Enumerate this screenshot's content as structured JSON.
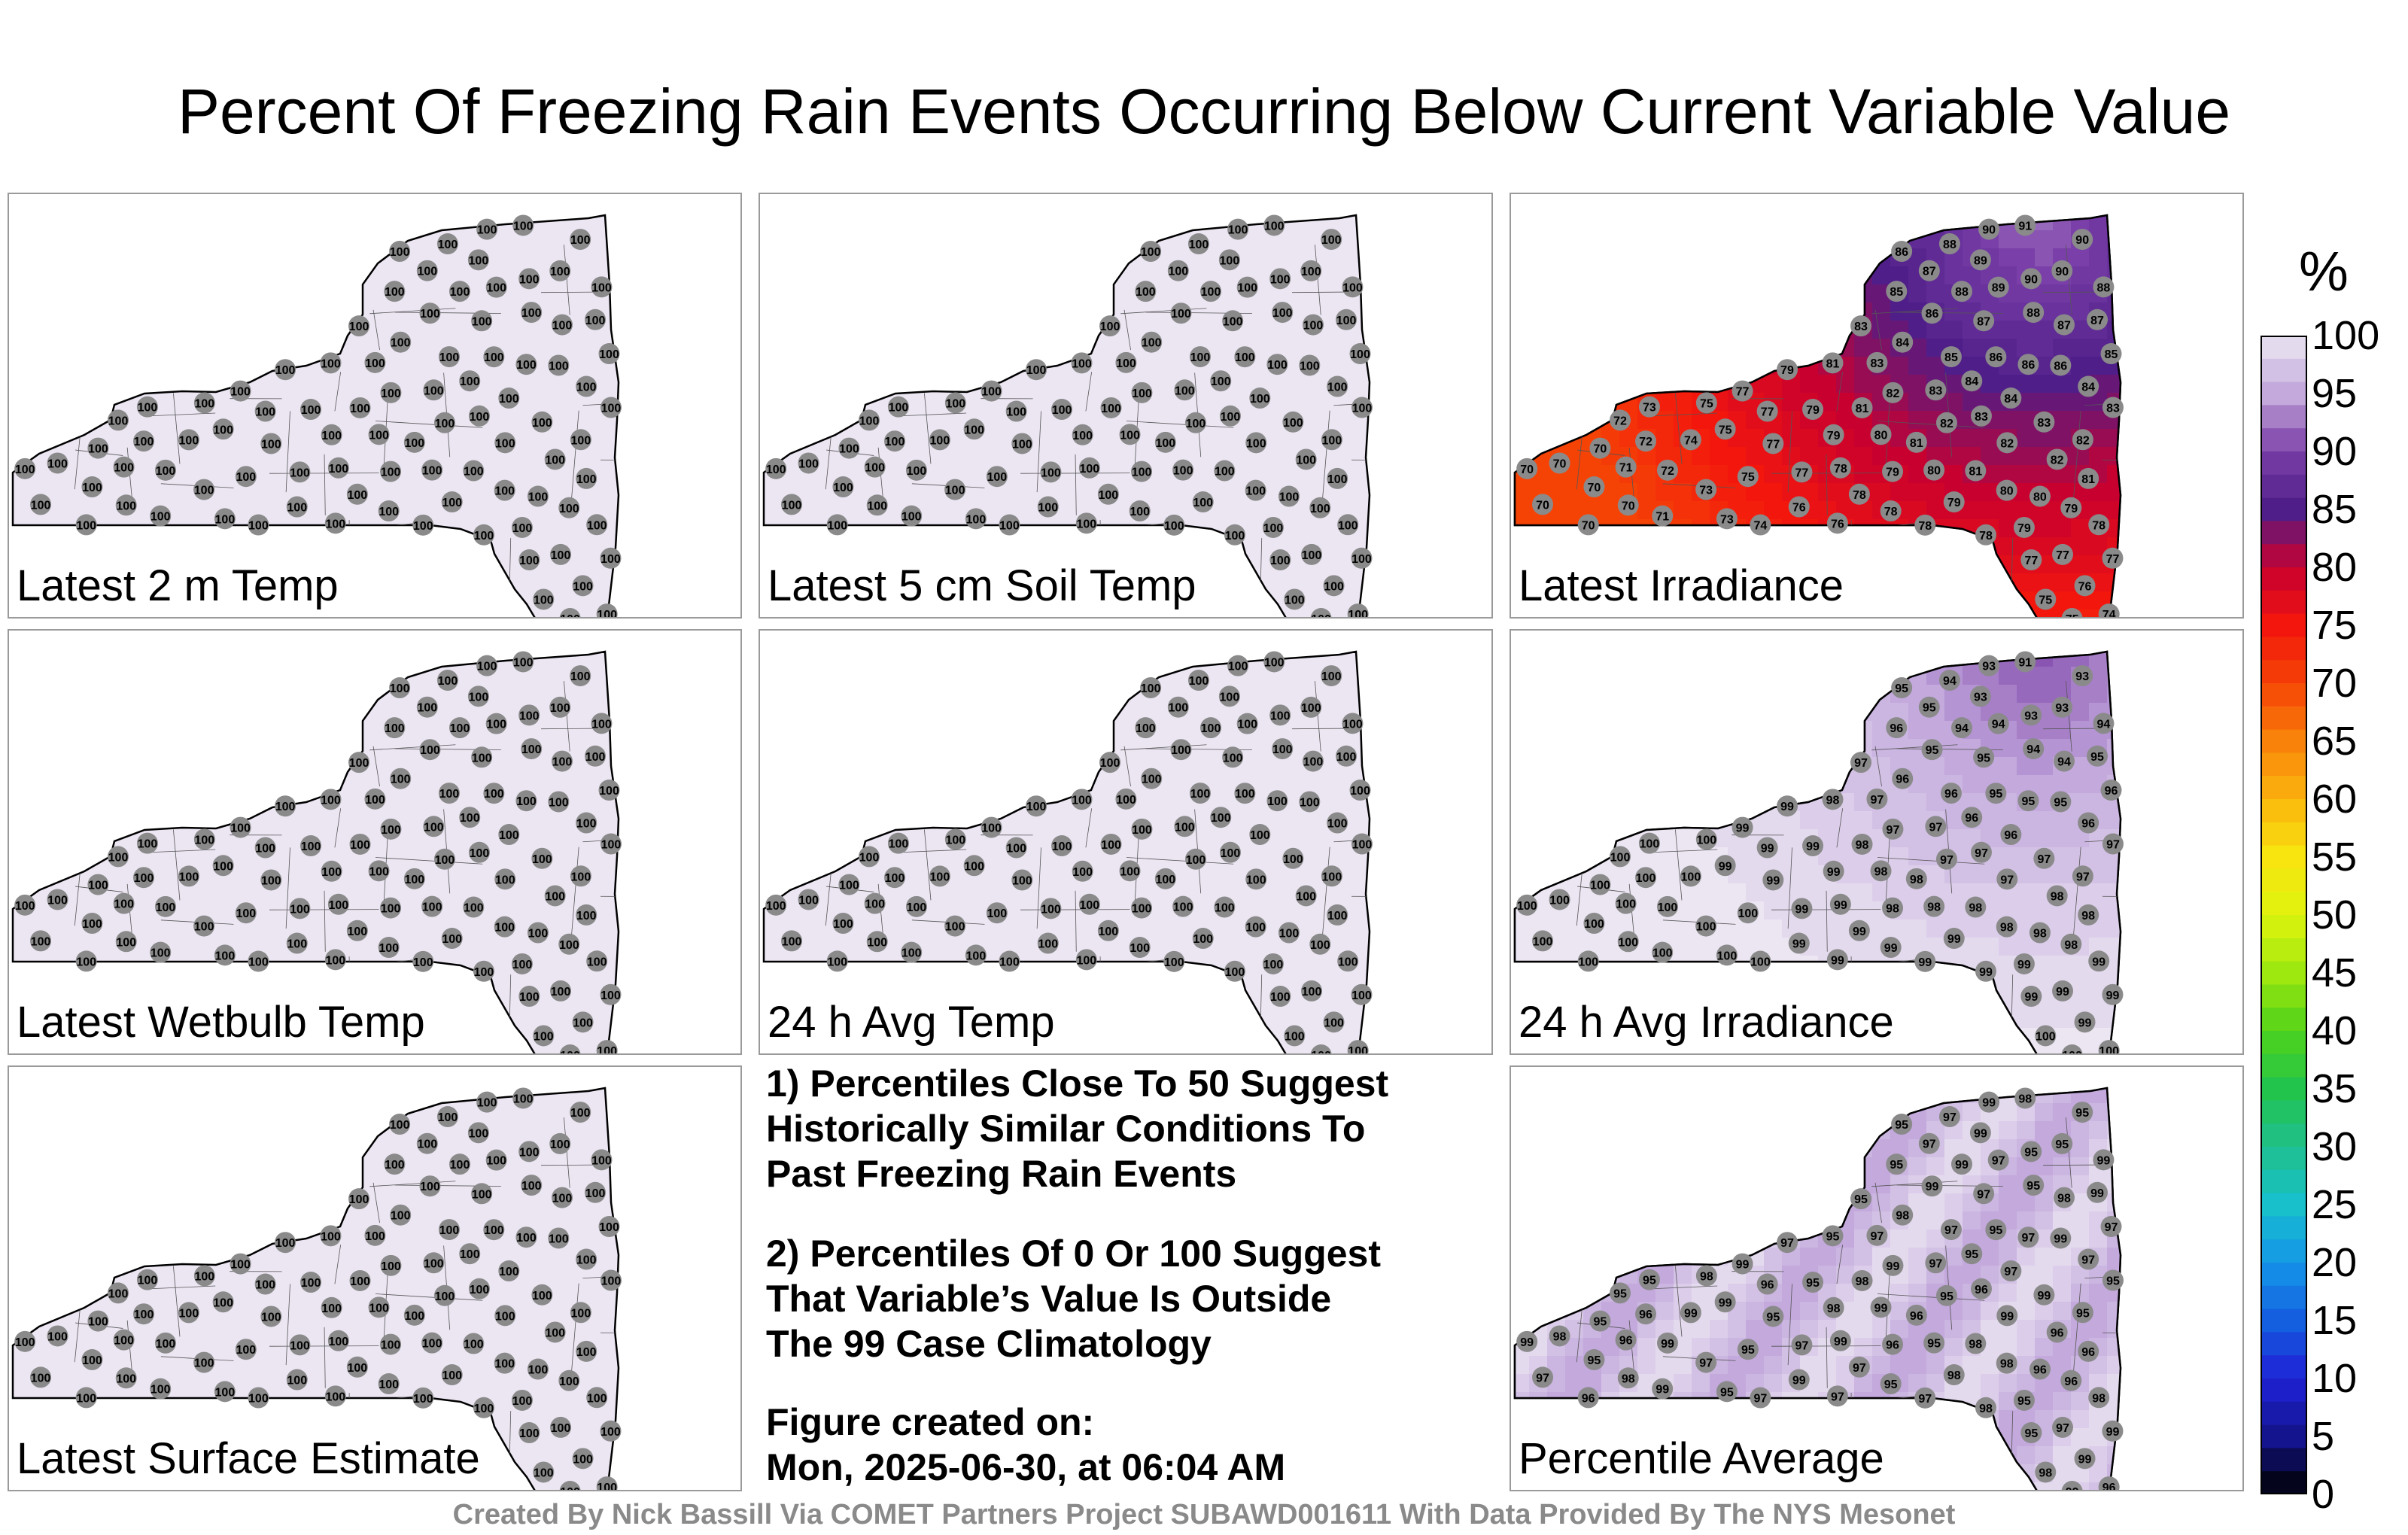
{
  "title": "Percent Of Freezing Rain Events Occurring Below Current Variable Value",
  "panels": [
    {
      "id": "t2m",
      "label": "Latest 2 m Temp",
      "mode": "uniform",
      "value": 100
    },
    {
      "id": "soil",
      "label": "Latest 5 cm Soil Temp",
      "mode": "uniform",
      "value": 100
    },
    {
      "id": "irr",
      "label": "Latest Irradiance",
      "mode": "irradiance",
      "low": 65,
      "high": 92
    },
    {
      "id": "wb",
      "label": "Latest Wetbulb Temp",
      "mode": "uniform",
      "value": 100
    },
    {
      "id": "avgt",
      "label": "24 h Avg Temp",
      "mode": "uniform",
      "value": 100
    },
    {
      "id": "avgirr",
      "label": "24 h Avg Irradiance",
      "mode": "avg_irradiance",
      "low": 91,
      "high": 100
    },
    {
      "id": "surf",
      "label": "Latest Surface Estimate",
      "mode": "uniform",
      "value": 100
    },
    {
      "id": "pavg",
      "label": "Percentile Average",
      "mode": "average",
      "low": 95,
      "high": 99
    }
  ],
  "notes": {
    "n1_l1": "1) Percentiles Close To 50 Suggest",
    "n1_l2": "Historically Similar Conditions To",
    "n1_l3": "Past Freezing Rain Events",
    "n2_l1": "2) Percentiles Of 0 Or 100 Suggest",
    "n2_l2": "That Variable’s Value Is Outside",
    "n2_l3": "The 99 Case Climatology",
    "n3_l1": "Figure created on:",
    "n3_l2": "Mon, 2025-06-30, at 06:04 AM"
  },
  "colorbar": {
    "unit": "%",
    "ticks": [
      100,
      95,
      90,
      85,
      80,
      75,
      70,
      65,
      60,
      55,
      50,
      45,
      40,
      35,
      30,
      25,
      20,
      15,
      10,
      5,
      0
    ],
    "min": 0,
    "max": 100,
    "colors": {
      "100": "#ece6f3",
      "95": "#c3a9dc",
      "90": "#7a3fa8",
      "85": "#4f1e89",
      "80": "#c8002f",
      "75": "#f2160d",
      "70": "#f54306",
      "65": "#f8820a",
      "60": "#fbb40d",
      "55": "#f8e40f",
      "50": "#dff40e",
      "45": "#9fe80f",
      "40": "#4fd21a",
      "35": "#23c44c",
      "30": "#1fc08d",
      "25": "#17c0cb",
      "20": "#1496e8",
      "15": "#145fe0",
      "10": "#1f22d6",
      "5": "#14148e",
      "0": "#000000"
    }
  },
  "credit": "Created By Nick Bassill Via COMET Partners Project SUBAWD001611 With Data Provided By The NYS Mesonet"
}
